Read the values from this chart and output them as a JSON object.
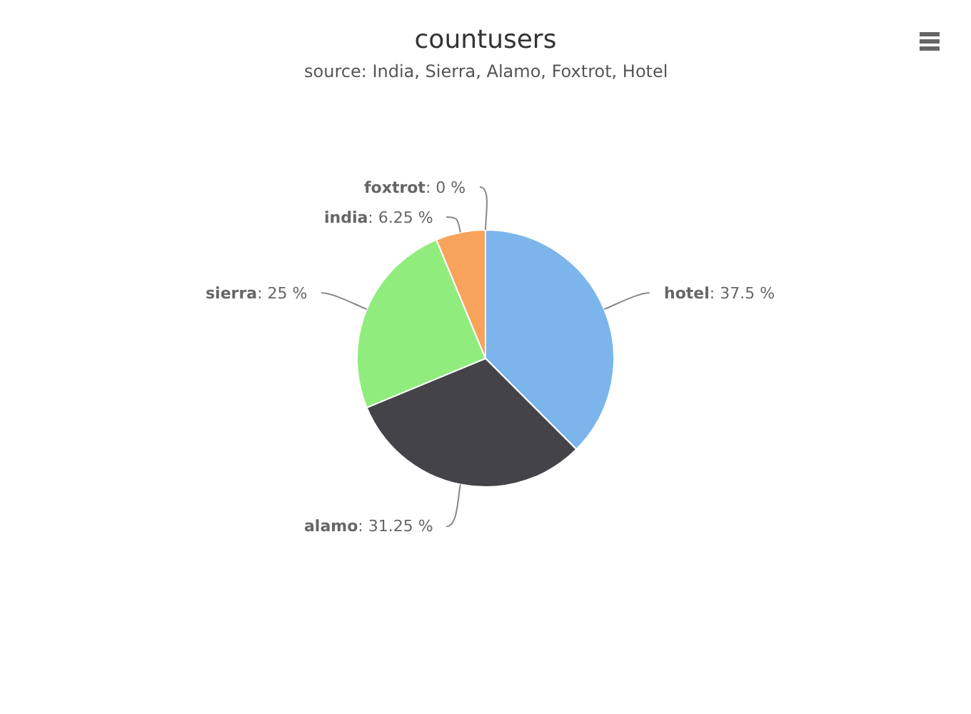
{
  "chart_data": {
    "type": "pie",
    "title": "countusers",
    "subtitle": "source: India, Sierra, Alamo, Foxtrot, Hotel",
    "categories": [
      "hotel",
      "alamo",
      "sierra",
      "india",
      "foxtrot"
    ],
    "values": [
      37.5,
      31.25,
      25,
      6.25,
      0
    ],
    "colors": [
      "#7cb5ec",
      "#434348",
      "#90ed7d",
      "#f7a35c",
      "#8085e9"
    ],
    "value_labels": [
      ": 37.5 %",
      ": 31.25 %",
      ": 25 %",
      ": 6.25 %",
      ": 0 %"
    ],
    "legend": false
  }
}
